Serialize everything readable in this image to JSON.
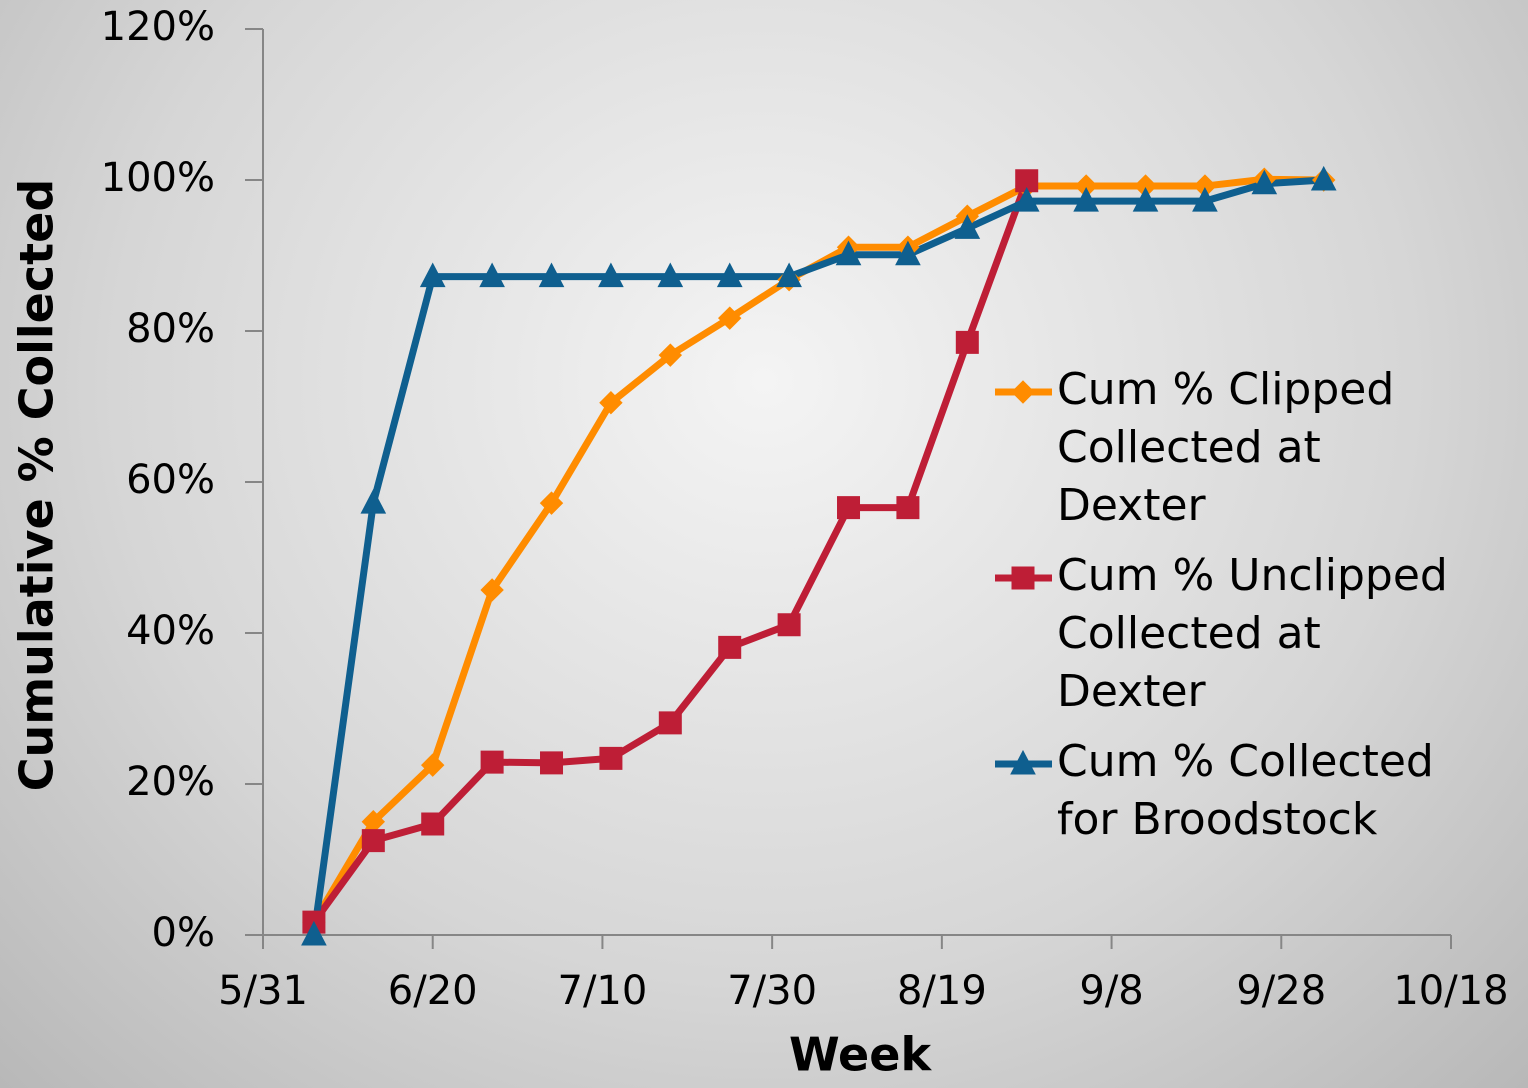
{
  "chart_data": {
    "type": "line",
    "x": [
      "6/6",
      "6/13",
      "6/20",
      "6/27",
      "7/4",
      "7/11",
      "7/18",
      "7/25",
      "8/1",
      "8/8",
      "8/15",
      "8/22",
      "8/29",
      "9/5",
      "9/12",
      "9/19",
      "9/26",
      "10/3"
    ],
    "series": [
      {
        "name": "Cum % Clipped Collected at Dexter",
        "color": "#ff8c00",
        "marker": "diamond",
        "values": [
          1.7,
          15,
          22.5,
          45.7,
          57.2,
          70.5,
          76.8,
          81.7,
          86.8,
          91.1,
          91.1,
          95.2,
          99.2,
          99.2,
          99.2,
          99.2,
          100.1,
          100
        ]
      },
      {
        "name": "Cum % Unclipped Collected at Dexter",
        "color": "#be1e36",
        "marker": "square",
        "values": [
          1.7,
          12.5,
          14.7,
          22.9,
          22.8,
          23.4,
          28.1,
          38.1,
          41.1,
          56.6,
          56.6,
          78.5,
          99.9,
          null,
          null,
          null,
          null,
          null
        ]
      },
      {
        "name": "Cum % Collected for Broodstock",
        "color": "#0f5f8f",
        "marker": "triangle",
        "values": [
          0,
          57.2,
          87.2,
          87.2,
          87.2,
          87.2,
          87.2,
          87.2,
          87.2,
          90.1,
          90.1,
          93.6,
          97.2,
          97.2,
          97.2,
          97.2,
          99.5,
          100
        ]
      }
    ],
    "xlabel": "Week",
    "ylabel": "Cumulative % Collected",
    "xlim": [
      "5/31",
      "10/18"
    ],
    "xticks": [
      "5/31",
      "6/20",
      "7/10",
      "7/30",
      "8/19",
      "9/8",
      "9/28",
      "10/18"
    ],
    "ylim": [
      0,
      120
    ],
    "yticks": [
      {
        "value": 0,
        "label": "0%"
      },
      {
        "value": 20,
        "label": "20%"
      },
      {
        "value": 40,
        "label": "40%"
      },
      {
        "value": 60,
        "label": "60%"
      },
      {
        "value": 80,
        "label": "80%"
      },
      {
        "value": 100,
        "label": "100%"
      },
      {
        "value": 120,
        "label": "120%"
      }
    ],
    "legend": "right",
    "grid": false
  }
}
